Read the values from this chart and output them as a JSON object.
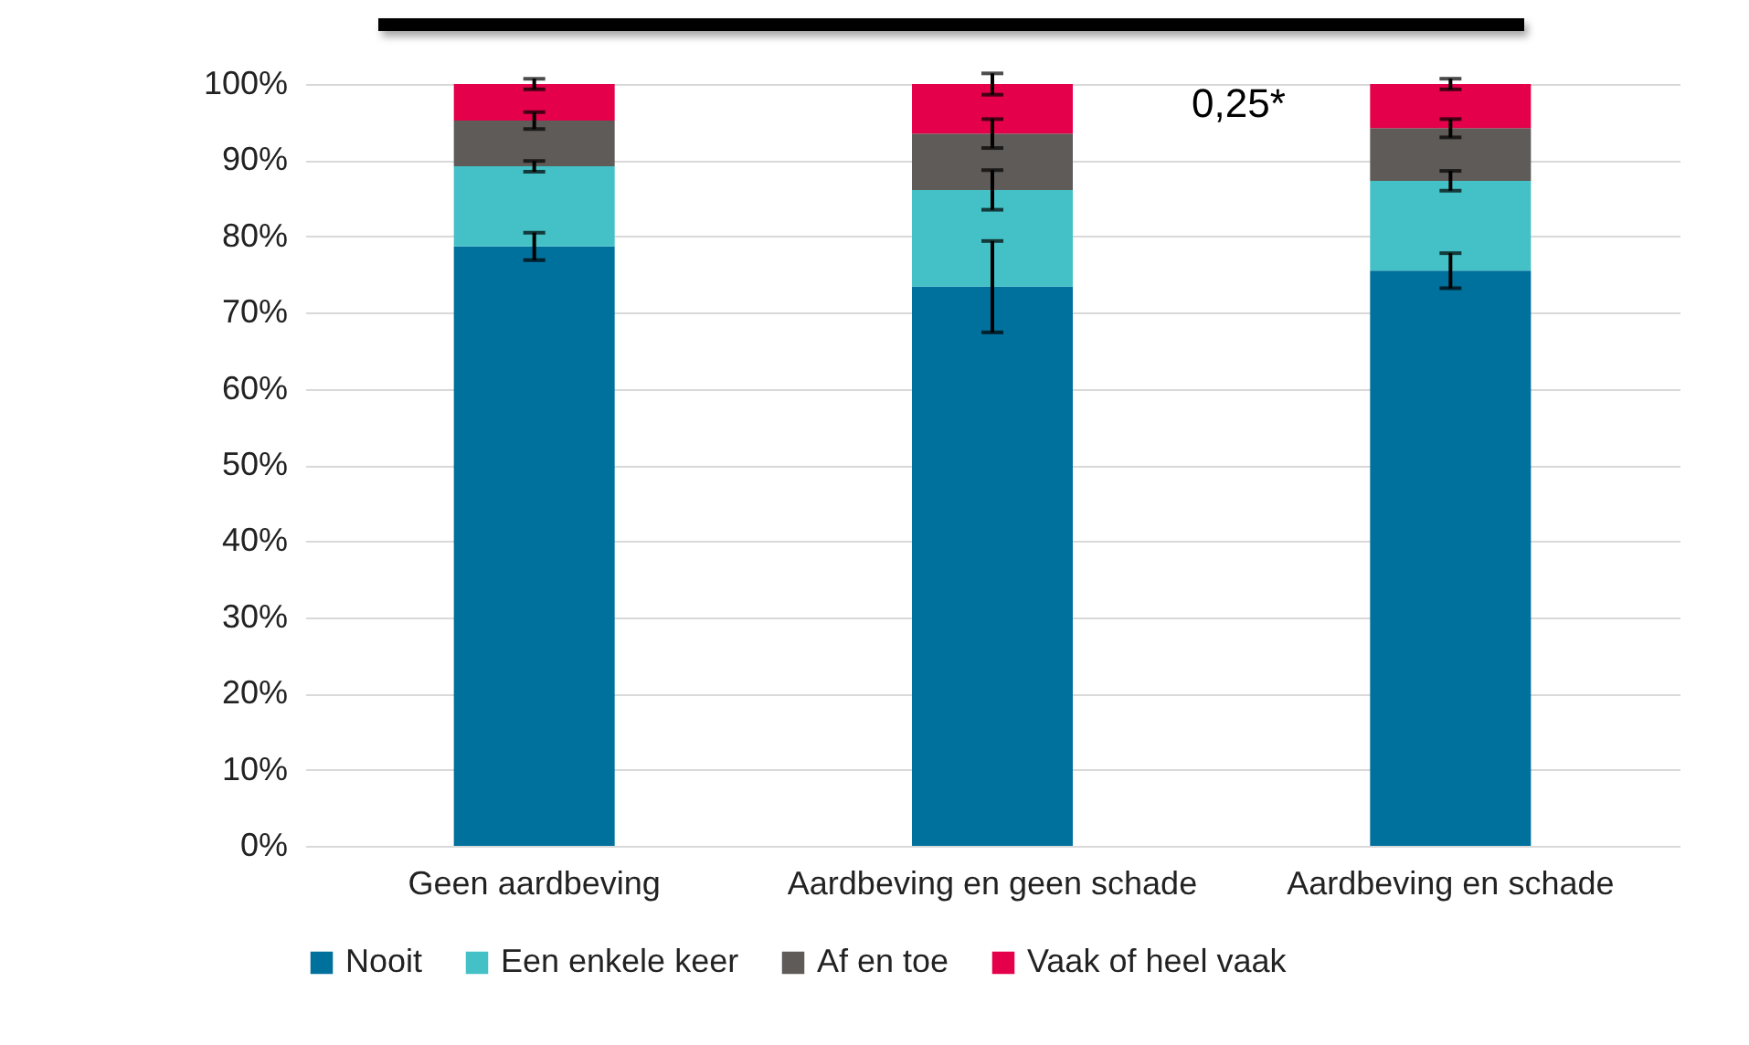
{
  "chart_data": {
    "type": "bar",
    "stacked": true,
    "categories": [
      "Geen aardbeving",
      "Aardbeving en geen schade",
      "Aardbeving en schade"
    ],
    "series": [
      {
        "name": "Nooit",
        "color": "#00709c",
        "values": [
          78.7,
          73.4,
          75.5
        ],
        "errors": [
          1.8,
          6.0,
          2.3
        ]
      },
      {
        "name": "Een enkele keer",
        "color": "#43c1c6",
        "values": [
          10.5,
          12.7,
          11.8
        ],
        "errors": [
          0.7,
          2.6,
          1.3
        ]
      },
      {
        "name": "Af en toe",
        "color": "#5f5b58",
        "values": [
          6.0,
          7.4,
          6.9
        ],
        "errors": [
          1.1,
          1.9,
          1.2
        ]
      },
      {
        "name": "Vaak of heel vaak",
        "color": "#e4004a",
        "values": [
          4.8,
          6.5,
          5.8
        ],
        "errors": [
          0.7,
          1.4,
          0.7
        ]
      }
    ],
    "ylim": [
      0,
      100
    ],
    "yticks": [
      {
        "value": 0,
        "label": "0%"
      },
      {
        "value": 10,
        "label": "10%"
      },
      {
        "value": 20,
        "label": "20%"
      },
      {
        "value": 30,
        "label": "30%"
      },
      {
        "value": 40,
        "label": "40%"
      },
      {
        "value": 50,
        "label": "50%"
      },
      {
        "value": 60,
        "label": "60%"
      },
      {
        "value": 70,
        "label": "70%"
      },
      {
        "value": 80,
        "label": "80%"
      },
      {
        "value": 90,
        "label": "90%"
      },
      {
        "value": 100,
        "label": "100%"
      }
    ],
    "grid": "y",
    "legend": "bottom",
    "annotations": [
      "0,25*"
    ]
  }
}
